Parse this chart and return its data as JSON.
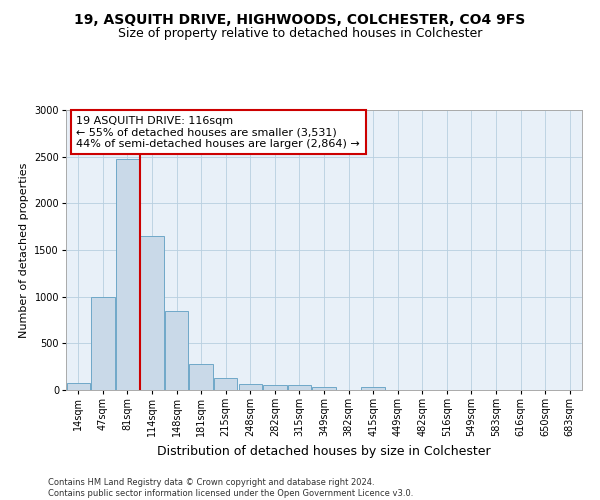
{
  "title1": "19, ASQUITH DRIVE, HIGHWOODS, COLCHESTER, CO4 9FS",
  "title2": "Size of property relative to detached houses in Colchester",
  "xlabel": "Distribution of detached houses by size in Colchester",
  "ylabel": "Number of detached properties",
  "categories": [
    "14sqm",
    "47sqm",
    "81sqm",
    "114sqm",
    "148sqm",
    "181sqm",
    "215sqm",
    "248sqm",
    "282sqm",
    "315sqm",
    "349sqm",
    "382sqm",
    "415sqm",
    "449sqm",
    "482sqm",
    "516sqm",
    "549sqm",
    "583sqm",
    "616sqm",
    "650sqm",
    "683sqm"
  ],
  "values": [
    80,
    1000,
    2480,
    1650,
    850,
    280,
    130,
    60,
    50,
    50,
    30,
    0,
    30,
    0,
    0,
    0,
    0,
    0,
    0,
    0,
    0
  ],
  "bar_color": "#c9d9e8",
  "bar_edge_color": "#6fa8c8",
  "annotation_box_text": "19 ASQUITH DRIVE: 116sqm\n← 55% of detached houses are smaller (3,531)\n44% of semi-detached houses are larger (2,864) →",
  "annotation_box_color": "#ffffff",
  "annotation_box_edge_color": "#cc0000",
  "vline_color": "#cc0000",
  "ylim": [
    0,
    3000
  ],
  "yticks": [
    0,
    500,
    1000,
    1500,
    2000,
    2500,
    3000
  ],
  "grid_color": "#b8cfe0",
  "background_color": "#e8f0f8",
  "footer_text": "Contains HM Land Registry data © Crown copyright and database right 2024.\nContains public sector information licensed under the Open Government Licence v3.0.",
  "title1_fontsize": 10,
  "title2_fontsize": 9,
  "xlabel_fontsize": 9,
  "ylabel_fontsize": 8,
  "annotation_fontsize": 8,
  "tick_fontsize": 7,
  "footer_fontsize": 6
}
